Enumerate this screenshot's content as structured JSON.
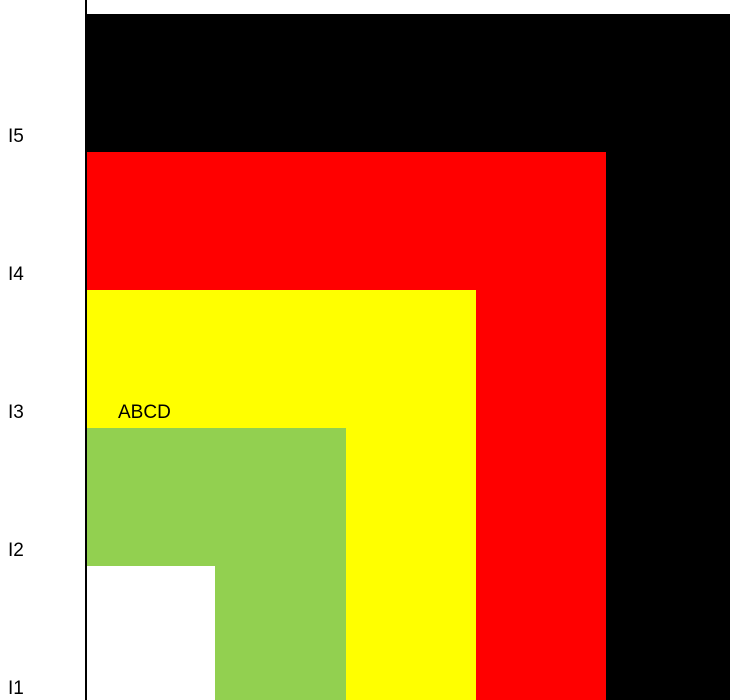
{
  "row_labels": [
    "I5",
    "I4",
    "I3",
    "I2",
    "I1"
  ],
  "regions": [
    {
      "name": "I5",
      "color": "#000000"
    },
    {
      "name": "I4",
      "color": "#ff0000"
    },
    {
      "name": "I3",
      "color": "#ffff00"
    },
    {
      "name": "I2",
      "color": "#92d050"
    },
    {
      "name": "I1",
      "color": "#ffffff"
    }
  ],
  "annotation": "ABCD"
}
